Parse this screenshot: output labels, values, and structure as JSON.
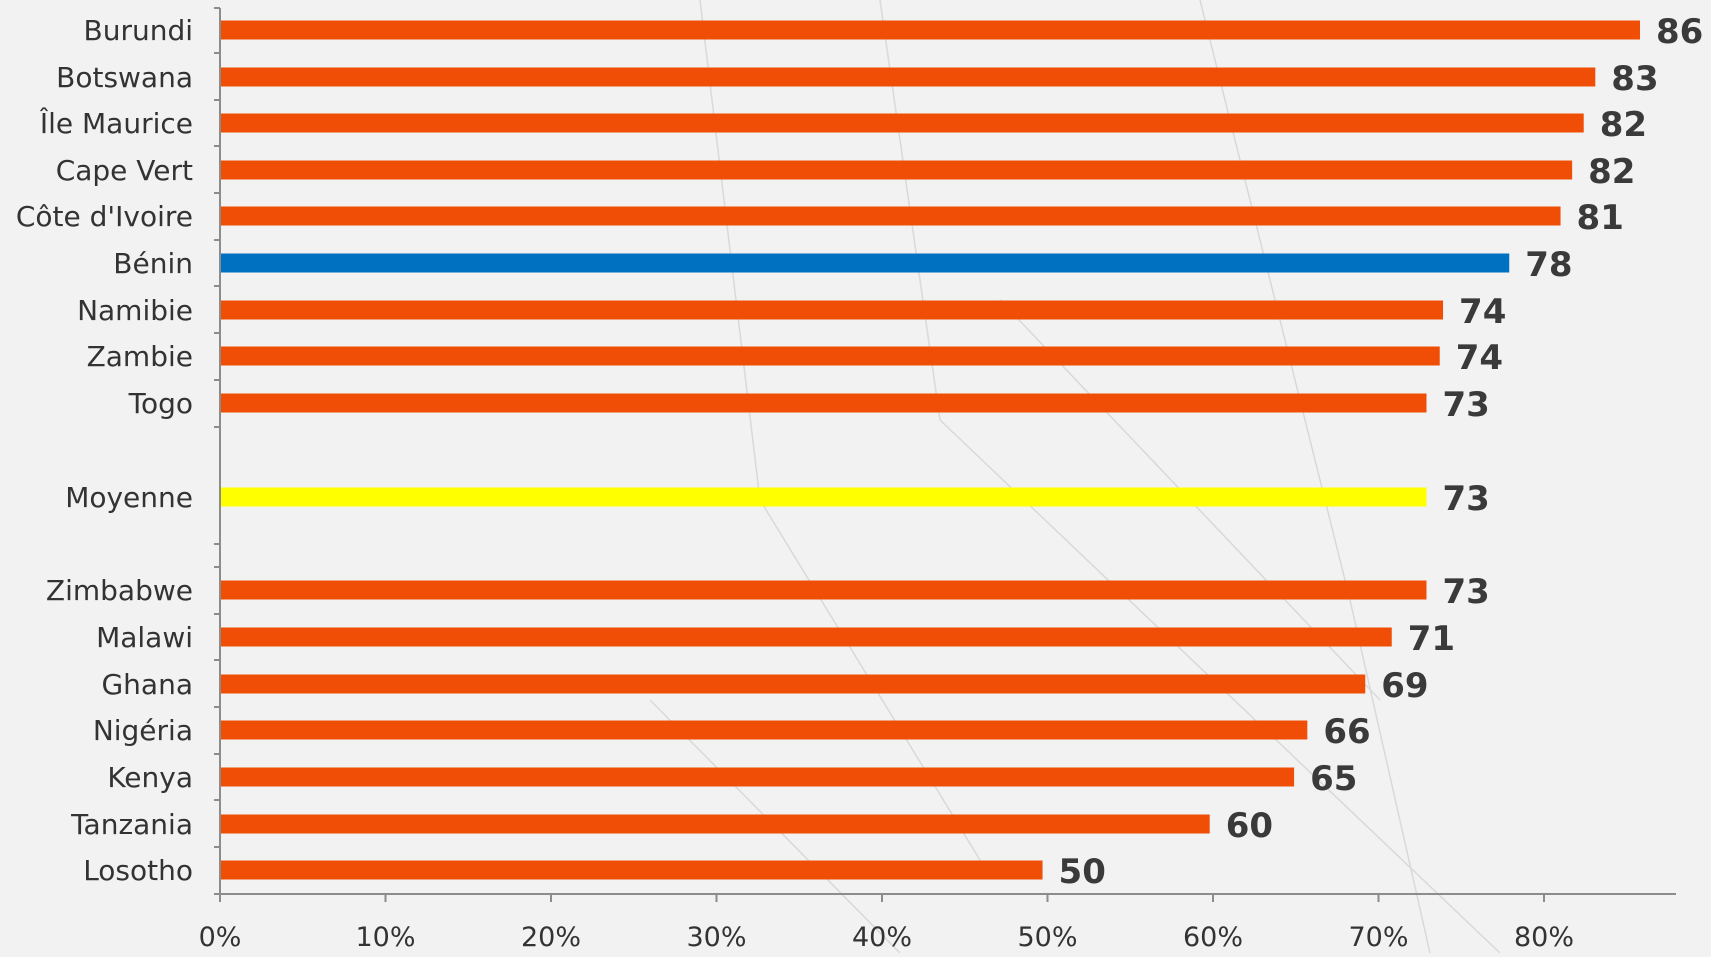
{
  "chart_data": {
    "type": "bar",
    "orientation": "horizontal",
    "categories": [
      "Burundi",
      "Botswana",
      "Île Maurice",
      "Cape Vert",
      "Côte d'Ivoire",
      "Bénin",
      "Namibie",
      "Zambie",
      "Togo",
      "Moyenne",
      "Zimbabwe",
      "Malawi",
      "Ghana",
      "Nigéria",
      "Kenya",
      "Tanzania",
      "Losotho"
    ],
    "values": [
      86,
      83,
      82,
      82,
      81,
      78,
      74,
      74,
      73,
      73,
      73,
      71,
      69,
      66,
      65,
      60,
      50
    ],
    "bar_values": [
      85.8,
      83.1,
      82.4,
      81.7,
      81.0,
      77.9,
      73.9,
      73.7,
      72.9,
      72.9,
      72.9,
      70.8,
      69.2,
      65.7,
      64.9,
      59.8,
      49.7
    ],
    "colors": {
      "default": "#f04e06",
      "highlight": "#0070c0",
      "average": "#ffff00"
    },
    "highlight_category": "Bénin",
    "average_category": "Moyenne",
    "x_ticks": [
      "0%",
      "10%",
      "20%",
      "30%",
      "40%",
      "50%",
      "60%",
      "70%",
      "80%"
    ],
    "xlim": [
      0,
      88
    ],
    "title": "",
    "xlabel": "",
    "ylabel": "",
    "grid": false,
    "legend": "none"
  }
}
